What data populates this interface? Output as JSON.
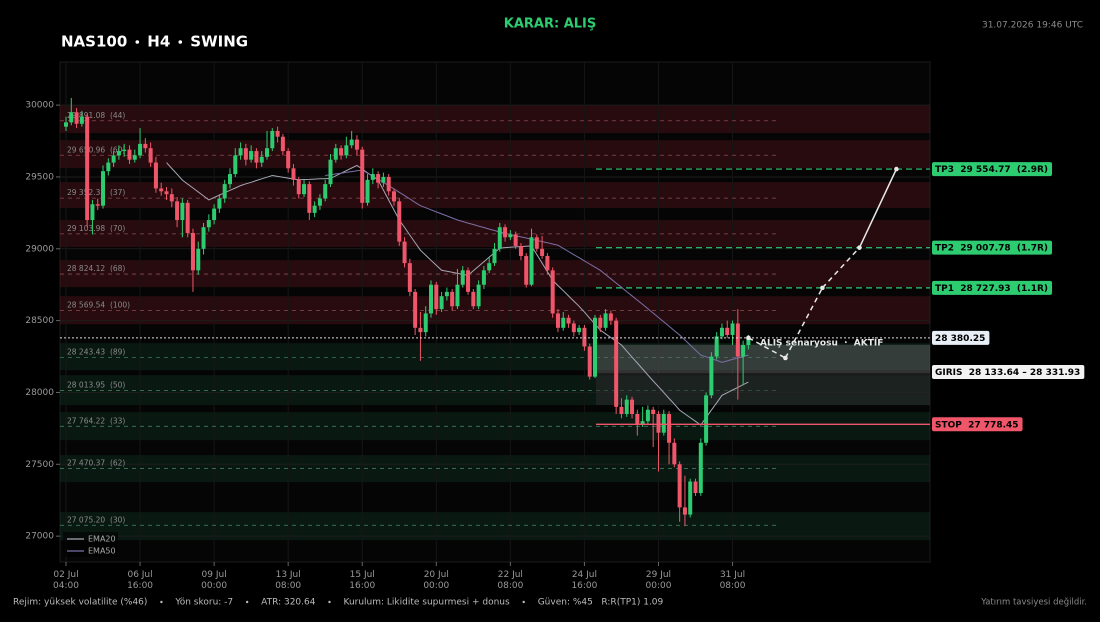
{
  "chart_data": {
    "type": "candlestick",
    "header": {
      "decision": "KARAR: ALIŞ",
      "title_parts": [
        "NAS100",
        "H4",
        "SWING"
      ],
      "timestamp": "31.07.2026 19:46 UTC"
    },
    "categories": [
      "02 Jul\n04:00",
      null,
      null,
      null,
      null,
      null,
      null,
      null,
      null,
      null,
      null,
      null,
      null,
      null,
      "06 Jul\n16:00",
      null,
      null,
      null,
      null,
      null,
      null,
      null,
      null,
      null,
      null,
      null,
      null,
      null,
      "09 Jul\n00:00",
      null,
      null,
      null,
      null,
      null,
      null,
      null,
      null,
      null,
      null,
      null,
      null,
      null,
      "13 Jul\n08:00",
      null,
      null,
      null,
      null,
      null,
      null,
      null,
      null,
      null,
      null,
      null,
      null,
      null,
      "15 Jul\n16:00",
      null,
      null,
      null,
      null,
      null,
      null,
      null,
      null,
      null,
      null,
      null,
      null,
      null,
      "20 Jul\n00:00",
      null,
      null,
      null,
      null,
      null,
      null,
      null,
      null,
      null,
      null,
      null,
      null,
      null,
      "22 Jul\n08:00",
      null,
      null,
      null,
      null,
      null,
      null,
      null,
      null,
      null,
      null,
      null,
      null,
      null,
      "24 Jul\n16:00",
      null,
      null,
      null,
      null,
      null,
      null,
      null,
      null,
      null,
      null,
      null,
      null,
      null,
      "29 Jul\n00:00",
      null,
      null,
      null,
      null,
      null,
      null,
      null,
      null,
      null,
      null,
      null,
      null,
      null,
      "31 Jul\n08:00",
      null,
      null,
      null
    ],
    "candles": [
      [
        29850,
        29920,
        29820,
        29880
      ],
      [
        29880,
        30050,
        29860,
        29950
      ],
      [
        29950,
        29980,
        29840,
        29870
      ],
      [
        29870,
        29960,
        29850,
        29920
      ],
      [
        29920,
        29940,
        29150,
        29200
      ],
      [
        29200,
        29340,
        29100,
        29310
      ],
      [
        29310,
        29350,
        29270,
        29300
      ],
      [
        29300,
        29580,
        29280,
        29540
      ],
      [
        29540,
        29630,
        29510,
        29600
      ],
      [
        29600,
        29680,
        29570,
        29650
      ],
      [
        29650,
        29720,
        29620,
        29680
      ],
      [
        29680,
        29730,
        29640,
        29690
      ],
      [
        29690,
        29720,
        29590,
        29620
      ],
      [
        29620,
        29690,
        29600,
        29650
      ],
      [
        29650,
        29840,
        29630,
        29730
      ],
      [
        29730,
        29770,
        29670,
        29700
      ],
      [
        29700,
        29740,
        29570,
        29600
      ],
      [
        29600,
        29640,
        29390,
        29420
      ],
      [
        29420,
        29460,
        29370,
        29400
      ],
      [
        29400,
        29430,
        29340,
        29380
      ],
      [
        29380,
        29420,
        29290,
        29330
      ],
      [
        29330,
        29360,
        29150,
        29200
      ],
      [
        29200,
        29350,
        29080,
        29320
      ],
      [
        29320,
        29340,
        29080,
        29110
      ],
      [
        29110,
        29140,
        28700,
        28850
      ],
      [
        28850,
        29050,
        28820,
        29000
      ],
      [
        29000,
        29180,
        28960,
        29150
      ],
      [
        29150,
        29240,
        29120,
        29200
      ],
      [
        29200,
        29310,
        29170,
        29280
      ],
      [
        29280,
        29380,
        29250,
        29350
      ],
      [
        29350,
        29480,
        29320,
        29450
      ],
      [
        29450,
        29560,
        29420,
        29520
      ],
      [
        29520,
        29700,
        29500,
        29650
      ],
      [
        29650,
        29740,
        29620,
        29700
      ],
      [
        29700,
        29730,
        29580,
        29620
      ],
      [
        29620,
        29720,
        29600,
        29680
      ],
      [
        29680,
        29700,
        29560,
        29600
      ],
      [
        29600,
        29680,
        29570,
        29640
      ],
      [
        29640,
        29820,
        29620,
        29700
      ],
      [
        29700,
        29840,
        29680,
        29820
      ],
      [
        29820,
        29850,
        29740,
        29780
      ],
      [
        29780,
        29800,
        29650,
        29680
      ],
      [
        29680,
        29700,
        29530,
        29560
      ],
      [
        29560,
        29590,
        29440,
        29480
      ],
      [
        29480,
        29500,
        29350,
        29380
      ],
      [
        29380,
        29480,
        29360,
        29450
      ],
      [
        29450,
        29470,
        29200,
        29250
      ],
      [
        29250,
        29330,
        29220,
        29300
      ],
      [
        29300,
        29380,
        29270,
        29350
      ],
      [
        29350,
        29480,
        29330,
        29450
      ],
      [
        29450,
        29660,
        29430,
        29620
      ],
      [
        29620,
        29730,
        29600,
        29700
      ],
      [
        29700,
        29720,
        29620,
        29650
      ],
      [
        29650,
        29780,
        29630,
        29720
      ],
      [
        29720,
        29820,
        29700,
        29760
      ],
      [
        29760,
        29790,
        29650,
        29690
      ],
      [
        29690,
        29710,
        29280,
        29320
      ],
      [
        29320,
        29520,
        29300,
        29480
      ],
      [
        29480,
        29560,
        29450,
        29520
      ],
      [
        29520,
        29540,
        29420,
        29460
      ],
      [
        29460,
        29530,
        29430,
        29500
      ],
      [
        29500,
        29520,
        29370,
        29400
      ],
      [
        29400,
        29420,
        29300,
        29330
      ],
      [
        29330,
        29350,
        29020,
        29050
      ],
      [
        29050,
        29080,
        28870,
        28900
      ],
      [
        28900,
        28930,
        28670,
        28700
      ],
      [
        28700,
        28720,
        28400,
        28450
      ],
      [
        28450,
        28560,
        28220,
        28420
      ],
      [
        28420,
        28600,
        28390,
        28550
      ],
      [
        28550,
        28780,
        28520,
        28750
      ],
      [
        28750,
        28770,
        28540,
        28580
      ],
      [
        28580,
        28700,
        28560,
        28670
      ],
      [
        28670,
        28730,
        28640,
        28700
      ],
      [
        28700,
        28720,
        28570,
        28600
      ],
      [
        28600,
        28860,
        28580,
        28750
      ],
      [
        28750,
        28880,
        28730,
        28850
      ],
      [
        28850,
        28870,
        28680,
        28700
      ],
      [
        28700,
        28720,
        28580,
        28600
      ],
      [
        28600,
        28780,
        28580,
        28750
      ],
      [
        28750,
        28880,
        28720,
        28850
      ],
      [
        28850,
        28940,
        28830,
        28900
      ],
      [
        28900,
        29040,
        28880,
        29000
      ],
      [
        29000,
        29180,
        28980,
        29150
      ],
      [
        29150,
        29170,
        29050,
        29080
      ],
      [
        29080,
        29130,
        29060,
        29100
      ],
      [
        29100,
        29120,
        29000,
        29020
      ],
      [
        29020,
        29040,
        28920,
        28950
      ],
      [
        28950,
        28970,
        28730,
        28750
      ],
      [
        28750,
        29140,
        28740,
        29080
      ],
      [
        29080,
        29100,
        28980,
        29000
      ],
      [
        29000,
        29090,
        28930,
        28950
      ],
      [
        28950,
        28970,
        28820,
        28850
      ],
      [
        28850,
        28870,
        28520,
        28550
      ],
      [
        28550,
        28580,
        28420,
        28450
      ],
      [
        28450,
        28560,
        28430,
        28520
      ],
      [
        28520,
        28540,
        28450,
        28480
      ],
      [
        28480,
        28500,
        28390,
        28420
      ],
      [
        28420,
        28470,
        28400,
        28450
      ],
      [
        28450,
        28470,
        28290,
        28320
      ],
      [
        28320,
        28340,
        28090,
        28110
      ],
      [
        28110,
        28540,
        28100,
        28520
      ],
      [
        28520,
        28540,
        28420,
        28450
      ],
      [
        28450,
        28580,
        28430,
        28550
      ],
      [
        28550,
        28570,
        28470,
        28500
      ],
      [
        28500,
        28520,
        27850,
        27900
      ],
      [
        27900,
        27960,
        27820,
        27850
      ],
      [
        27850,
        27980,
        27830,
        27950
      ],
      [
        27950,
        27970,
        27820,
        27850
      ],
      [
        27850,
        27880,
        27700,
        27780
      ],
      [
        27780,
        27900,
        27760,
        27800
      ],
      [
        27800,
        27910,
        27780,
        27880
      ],
      [
        27880,
        27900,
        27620,
        27850
      ],
      [
        27850,
        27870,
        27450,
        27720
      ],
      [
        27720,
        27880,
        27700,
        27850
      ],
      [
        27850,
        27870,
        27500,
        27650
      ],
      [
        27650,
        27680,
        27480,
        27500
      ],
      [
        27500,
        27520,
        27100,
        27200
      ],
      [
        27200,
        27420,
        27070,
        27150
      ],
      [
        27150,
        27400,
        27130,
        27380
      ],
      [
        27380,
        27400,
        27280,
        27300
      ],
      [
        27300,
        27680,
        27280,
        27650
      ],
      [
        27650,
        28000,
        27630,
        27980
      ],
      [
        27980,
        28280,
        27960,
        28250
      ],
      [
        28250,
        28420,
        28230,
        28390
      ],
      [
        28390,
        28480,
        28370,
        28450
      ],
      [
        28450,
        28500,
        28380,
        28400
      ],
      [
        28400,
        28500,
        28330,
        28480
      ],
      [
        28480,
        28580,
        27950,
        28250
      ],
      [
        28250,
        28360,
        28050,
        28330
      ],
      [
        28330,
        28400,
        28300,
        28380.25
      ]
    ],
    "up_color": "#2ecc71",
    "down_color": "#f0566a",
    "series": [
      {
        "name": "EMA20",
        "color": "#a7a7b5",
        "values": [
          null,
          null,
          null,
          null,
          null,
          null,
          null,
          null,
          null,
          null,
          null,
          null,
          null,
          null,
          null,
          null,
          null,
          null,
          null,
          29600,
          29559,
          29519,
          29478,
          29450,
          29423,
          29395,
          29368,
          29340,
          29357,
          29373,
          29390,
          29407,
          29423,
          29440,
          29452,
          29463,
          29475,
          29487,
          29498,
          29510,
          29504,
          29498,
          29492,
          29486,
          29480,
          29482,
          29483,
          29485,
          29487,
          29488,
          29490,
          29508,
          29526,
          29544,
          29562,
          29580,
          29555,
          29529,
          29504,
          29478,
          29409,
          29339,
          29270,
          29200,
          29148,
          29095,
          29043,
          28990,
          28955,
          28920,
          28885,
          28850,
          28843,
          28836,
          28829,
          28822,
          28815,
          28847,
          28878,
          28910,
          28942,
          28973,
          29005,
          29008,
          29010,
          29013,
          29015,
          29018,
          29020,
          28960,
          28900,
          28840,
          28780,
          28744,
          28708,
          28672,
          28636,
          28600,
          28559,
          28517,
          28476,
          28434,
          28408,
          28382,
          28356,
          28330,
          28288,
          28246,
          28205,
          28163,
          28121,
          28080,
          28040,
          27999,
          27958,
          27918,
          27877,
          27851,
          27825,
          27799,
          27773,
          27825,
          27877,
          27928,
          27980,
          27998,
          28017,
          28035,
          28054,
          28072
        ]
      },
      {
        "name": "EMA50",
        "color": "#7d6fa6",
        "values": [
          null,
          null,
          null,
          null,
          null,
          null,
          null,
          null,
          null,
          null,
          null,
          null,
          null,
          null,
          null,
          null,
          null,
          null,
          null,
          null,
          null,
          null,
          null,
          null,
          null,
          null,
          null,
          null,
          null,
          null,
          null,
          null,
          null,
          null,
          null,
          null,
          null,
          null,
          null,
          null,
          null,
          null,
          null,
          null,
          null,
          null,
          null,
          null,
          null,
          29510,
          29515,
          29521,
          29526,
          29532,
          29537,
          29543,
          29548,
          29526,
          29505,
          29483,
          29462,
          29440,
          29417,
          29393,
          29370,
          29347,
          29323,
          29300,
          29286,
          29271,
          29257,
          29243,
          29229,
          29214,
          29200,
          29190,
          29179,
          29169,
          29158,
          29148,
          29137,
          29127,
          29116,
          29108,
          29099,
          29091,
          29083,
          29075,
          29066,
          29058,
          29050,
          29042,
          29033,
          29025,
          29003,
          28981,
          28959,
          28938,
          28916,
          28894,
          28872,
          28850,
          28820,
          28791,
          28761,
          28732,
          28702,
          28673,
          28643,
          28613,
          28582,
          28552,
          28522,
          28491,
          28461,
          28430,
          28400,
          28365,
          28330,
          28295,
          28260,
          28248,
          28235,
          28223,
          28210,
          28220,
          28230,
          28240,
          28250,
          28260
        ]
      }
    ],
    "ylim": [
      26820,
      30300
    ],
    "yticks": [
      27000,
      27500,
      28000,
      28500,
      29000,
      29500,
      30000
    ],
    "grid": true,
    "resistance_color": "#7a1c26",
    "support_color": "#134a33",
    "levels": [
      {
        "kind": "resistance",
        "value": 29891.08,
        "text": "29 891.08  (44)",
        "zone": [
          29805,
          30000
        ]
      },
      {
        "kind": "resistance",
        "value": 29650.96,
        "text": "29 650.96  (60)",
        "zone": [
          29561,
          29756
        ]
      },
      {
        "kind": "resistance",
        "value": 29352.38,
        "text": "29 352.38  (37)",
        "zone": [
          29283,
          29464
        ]
      },
      {
        "kind": "resistance",
        "value": 29103.98,
        "text": "29 103.98  (70)",
        "zone": [
          29012,
          29200
        ]
      },
      {
        "kind": "resistance",
        "value": 28824.12,
        "text": "28 824.12  (68)",
        "zone": [
          28733,
          28921
        ]
      },
      {
        "kind": "resistance",
        "value": 28569.54,
        "text": "28 569.54  (100)",
        "zone": [
          28475,
          28670
        ]
      },
      {
        "kind": "support",
        "value": 28243.43,
        "text": "28 243.43  (89)",
        "zone": [
          28155,
          28343
        ]
      },
      {
        "kind": "support",
        "value": 28013.95,
        "text": "28 013.95  (50)",
        "zone": [
          27912,
          28120
        ]
      },
      {
        "kind": "support",
        "value": 27764.22,
        "text": "27 764.22  (33)",
        "zone": [
          27668,
          27863
        ]
      },
      {
        "kind": "support",
        "value": 27470.37,
        "text": "27 470.37  (62)",
        "zone": [
          27376,
          27564
        ]
      },
      {
        "kind": "support",
        "value": 27075.2,
        "text": "27 075.20  (30)",
        "zone": [
          26972,
          27167
        ]
      }
    ],
    "plan": {
      "current": 28380.25,
      "current_label": "28 380.25",
      "entry_zone": [
        28133.64,
        28331.93
      ],
      "entry_label": "GIRIS  28 133.64 – 28 331.93",
      "risk_shade": [
        27912,
        28133.64
      ],
      "stop": 27778.45,
      "stop_label": "STOP  27 778.45",
      "targets": [
        {
          "value": 28727.93,
          "label": "TP1  28 727.93  (1.1R)"
        },
        {
          "value": 29007.78,
          "label": "TP2  29 007.78  (1.7R)"
        },
        {
          "value": 29554.77,
          "label": "TP3  29 554.77  (2.9R)"
        }
      ],
      "status": "ALIŞ senaryosu  ·  AKTİF",
      "projection": [
        28380.25,
        28240,
        28727.93,
        29007.78,
        29554.77
      ],
      "segment_styles": [
        "dashed",
        "dashed",
        "dashed",
        "solid"
      ]
    },
    "footer": {
      "items": [
        "Rejim: yüksek volatilite (%46)",
        "Yön skoru: -7",
        "ATR: 320.64",
        "Kurulum: Likidite supurmesi + donus",
        "Güven: %45   R:R(TP1) 1.09"
      ],
      "disclaimer": "Yatırım tavsiyesi değildir."
    }
  }
}
